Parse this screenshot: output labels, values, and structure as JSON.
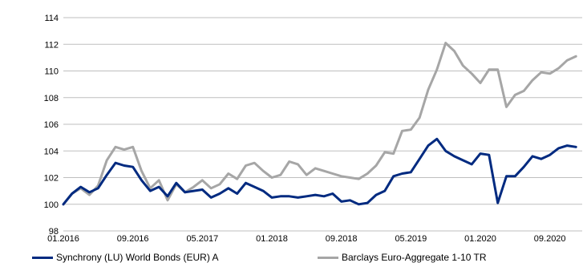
{
  "chart_data": {
    "type": "line",
    "title": "",
    "xlabel": "",
    "ylabel": "",
    "ylim": [
      98,
      114
    ],
    "yticks": [
      98,
      100,
      102,
      104,
      106,
      108,
      110,
      112,
      114
    ],
    "xtick_labels": [
      "01.2016",
      "09.2016",
      "05.2017",
      "01.2018",
      "09.2018",
      "05.2019",
      "01.2020",
      "09.2020"
    ],
    "grid": true,
    "legend_position": "bottom",
    "x": [
      "2016-01",
      "2016-02",
      "2016-03",
      "2016-04",
      "2016-05",
      "2016-06",
      "2016-07",
      "2016-08",
      "2016-09",
      "2016-10",
      "2016-11",
      "2016-12",
      "2017-01",
      "2017-02",
      "2017-03",
      "2017-04",
      "2017-05",
      "2017-06",
      "2017-07",
      "2017-08",
      "2017-09",
      "2017-10",
      "2017-11",
      "2017-12",
      "2018-01",
      "2018-02",
      "2018-03",
      "2018-04",
      "2018-05",
      "2018-06",
      "2018-07",
      "2018-08",
      "2018-09",
      "2018-10",
      "2018-11",
      "2018-12",
      "2019-01",
      "2019-02",
      "2019-03",
      "2019-04",
      "2019-05",
      "2019-06",
      "2019-07",
      "2019-08",
      "2019-09",
      "2019-10",
      "2019-11",
      "2019-12",
      "2020-01",
      "2020-02",
      "2020-03",
      "2020-04",
      "2020-05",
      "2020-06",
      "2020-07",
      "2020-08",
      "2020-09",
      "2020-10",
      "2020-11",
      "2020-12"
    ],
    "series": [
      {
        "name": "Synchrony (LU) World Bonds (EUR) A",
        "color": "#002a80",
        "values": [
          100.0,
          100.8,
          101.3,
          100.9,
          101.2,
          102.2,
          103.1,
          102.9,
          102.8,
          101.8,
          101.0,
          101.3,
          100.6,
          101.6,
          100.9,
          101.0,
          101.1,
          100.5,
          100.8,
          101.2,
          100.8,
          101.6,
          101.3,
          101.0,
          100.5,
          100.6,
          100.6,
          100.5,
          100.6,
          100.7,
          100.6,
          100.8,
          100.2,
          100.3,
          100.0,
          100.1,
          100.7,
          101.0,
          102.1,
          102.3,
          102.4,
          103.4,
          104.4,
          104.9,
          104.0,
          103.6,
          103.3,
          103.0,
          103.8,
          103.7,
          100.1,
          102.1,
          102.1,
          102.8,
          103.6,
          103.4,
          103.7,
          104.2,
          104.4,
          104.3
        ]
      },
      {
        "name": "Barclays Euro-Aggregate 1-10 TR",
        "color": "#a6a6a6",
        "values": [
          100.0,
          100.8,
          101.2,
          100.7,
          101.4,
          103.3,
          104.3,
          104.1,
          104.3,
          102.5,
          101.2,
          101.8,
          100.3,
          101.5,
          100.9,
          101.3,
          101.8,
          101.2,
          101.5,
          102.3,
          101.9,
          102.9,
          103.1,
          102.5,
          102.0,
          102.2,
          103.2,
          103.0,
          102.2,
          102.7,
          102.5,
          102.3,
          102.1,
          102.0,
          101.9,
          102.3,
          102.9,
          103.9,
          103.8,
          105.5,
          105.6,
          106.5,
          108.6,
          110.1,
          112.1,
          111.5,
          110.4,
          109.8,
          109.1,
          110.1,
          110.1,
          107.3,
          108.2,
          108.5,
          109.3,
          109.9,
          109.8,
          110.2,
          110.8,
          111.1
        ]
      }
    ]
  }
}
